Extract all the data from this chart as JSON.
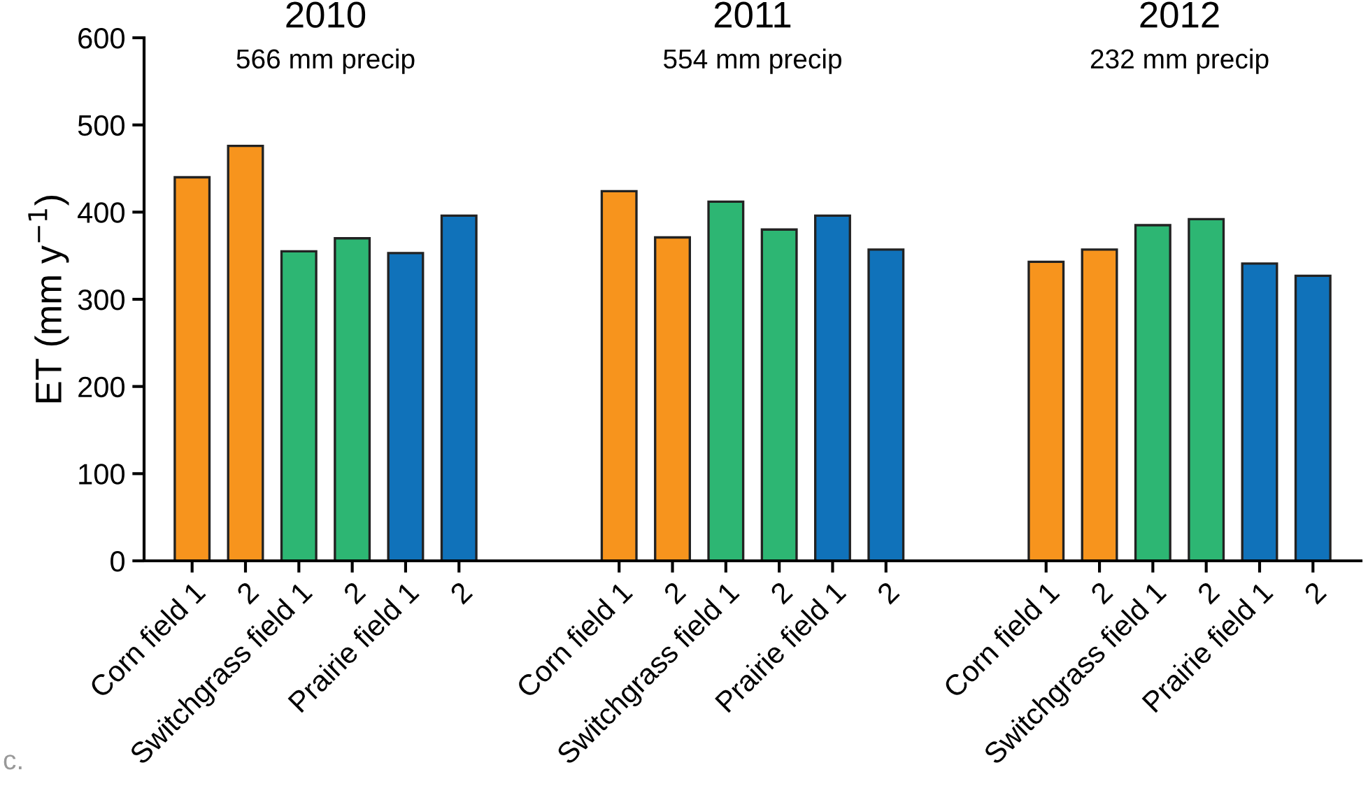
{
  "chart_data": {
    "type": "bar",
    "ylabel": "ET (mm y$^{−1}$)",
    "categories": [
      "Corn field 1",
      "2",
      "Switchgrass field 1",
      "2",
      "Prairie field 1",
      "2",
      null,
      null,
      "Corn field 1",
      "2",
      "Switchgrass field 1",
      "2",
      "Prairie field 1",
      "2",
      null,
      null,
      "Corn field 1",
      "2",
      "Switchgrass field 1",
      "2",
      "Prairie field 1",
      "2"
    ],
    "values": [
      440,
      476,
      355,
      370,
      353,
      396,
      null,
      null,
      424,
      371,
      412,
      380,
      396,
      357,
      null,
      null,
      343,
      357,
      385,
      392,
      341,
      327
    ],
    "colors": [
      "#f7941d",
      "#f7941d",
      "#2db673",
      "#2db673",
      "#1072ba",
      "#1072ba",
      null,
      null,
      "#f7941d",
      "#f7941d",
      "#2db673",
      "#2db673",
      "#1072ba",
      "#1072ba",
      null,
      null,
      "#f7941d",
      "#f7941d",
      "#2db673",
      "#2db673",
      "#1072ba",
      "#1072ba"
    ],
    "ylim": [
      0,
      600
    ],
    "yticks": [
      0,
      100,
      200,
      300,
      400,
      500,
      600
    ],
    "grid": false,
    "legend": false,
    "annotations": [
      "2010",
      "566 mm precip",
      "2011",
      "554 mm precip",
      "2012",
      "232 mm precip",
      "c."
    ]
  }
}
